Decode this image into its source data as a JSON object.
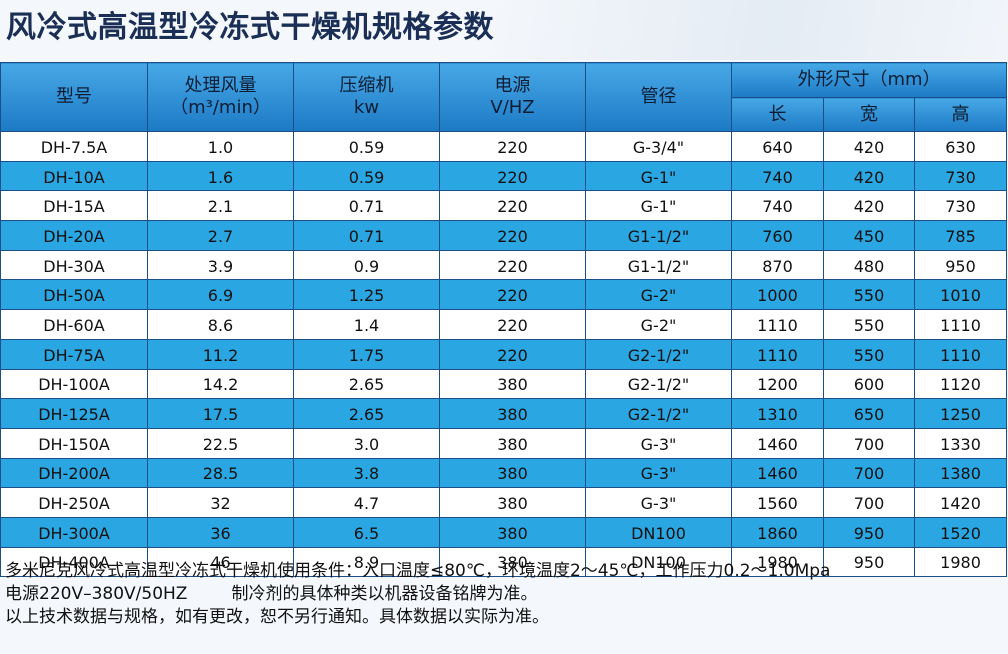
{
  "title": "风冷式高温型冷冻式干燥机规格参数",
  "table": {
    "headers": {
      "model": "型号",
      "flow_line1": "处理风量",
      "flow_line2": "（m³/min）",
      "compressor_line1": "压缩机",
      "compressor_line2": "kw",
      "power_line1": "电源",
      "power_line2": "V/HZ",
      "pipe": "管径",
      "dimensions": "外形尺寸（mm）",
      "length": "长",
      "width": "宽",
      "height": "高"
    },
    "rows": [
      {
        "model": "DH-7.5A",
        "flow": "1.0",
        "compressor": "0.59",
        "power": "220",
        "pipe": "G-3/4\"",
        "length": "640",
        "width": "420",
        "height": "630"
      },
      {
        "model": "DH-10A",
        "flow": "1.6",
        "compressor": "0.59",
        "power": "220",
        "pipe": "G-1\"",
        "length": "740",
        "width": "420",
        "height": "730"
      },
      {
        "model": "DH-15A",
        "flow": "2.1",
        "compressor": "0.71",
        "power": "220",
        "pipe": "G-1\"",
        "length": "740",
        "width": "420",
        "height": "730"
      },
      {
        "model": "DH-20A",
        "flow": "2.7",
        "compressor": "0.71",
        "power": "220",
        "pipe": "G1-1/2\"",
        "length": "760",
        "width": "450",
        "height": "785"
      },
      {
        "model": "DH-30A",
        "flow": "3.9",
        "compressor": "0.9",
        "power": "220",
        "pipe": "G1-1/2\"",
        "length": "870",
        "width": "480",
        "height": "950"
      },
      {
        "model": "DH-50A",
        "flow": "6.9",
        "compressor": "1.25",
        "power": "220",
        "pipe": "G-2\"",
        "length": "1000",
        "width": "550",
        "height": "1010"
      },
      {
        "model": "DH-60A",
        "flow": "8.6",
        "compressor": "1.4",
        "power": "220",
        "pipe": "G-2\"",
        "length": "1110",
        "width": "550",
        "height": "1110"
      },
      {
        "model": "DH-75A",
        "flow": "11.2",
        "compressor": "1.75",
        "power": "220",
        "pipe": "G2-1/2\"",
        "length": "1110",
        "width": "550",
        "height": "1110"
      },
      {
        "model": "DH-100A",
        "flow": "14.2",
        "compressor": "2.65",
        "power": "380",
        "pipe": "G2-1/2\"",
        "length": "1200",
        "width": "600",
        "height": "1120"
      },
      {
        "model": "DH-125A",
        "flow": "17.5",
        "compressor": "2.65",
        "power": "380",
        "pipe": "G2-1/2\"",
        "length": "1310",
        "width": "650",
        "height": "1250"
      },
      {
        "model": "DH-150A",
        "flow": "22.5",
        "compressor": "3.0",
        "power": "380",
        "pipe": "G-3\"",
        "length": "1460",
        "width": "700",
        "height": "1330"
      },
      {
        "model": "DH-200A",
        "flow": "28.5",
        "compressor": "3.8",
        "power": "380",
        "pipe": "G-3\"",
        "length": "1460",
        "width": "700",
        "height": "1380"
      },
      {
        "model": "DH-250A",
        "flow": "32",
        "compressor": "4.7",
        "power": "380",
        "pipe": "G-3\"",
        "length": "1560",
        "width": "700",
        "height": "1420"
      },
      {
        "model": "DH-300A",
        "flow": "36",
        "compressor": "6.5",
        "power": "380",
        "pipe": "DN100",
        "length": "1860",
        "width": "950",
        "height": "1520"
      },
      {
        "model": "DH-400A",
        "flow": "46",
        "compressor": "8.9",
        "power": "380",
        "pipe": "DN100",
        "length": "1980",
        "width": "950",
        "height": "1980"
      }
    ]
  },
  "notes": {
    "line1": "多米尼克风冷式高温型冷冻式干燥机使用条件：入口温度≤80℃，环境温度2～45℃，工作压力0.2～1.0Mpa",
    "line2a": "电源220V–380V/50HZ",
    "line2b": "制冷剂的具体种类以机器设备铭牌为准。",
    "line3": "以上技术数据与规格，如有更改，恕不另行通知。具体数据以实际为准。"
  },
  "colors": {
    "header": "#2a8fd6",
    "row_alt": "#2aa7e2",
    "row_plain": "#ffffff",
    "title": "#1b2f56"
  }
}
